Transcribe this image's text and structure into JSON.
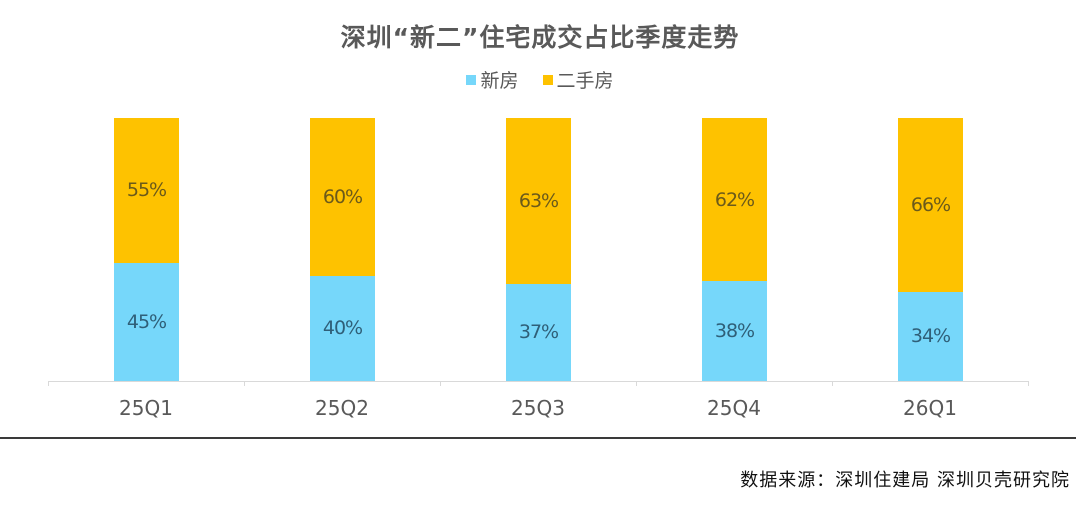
{
  "title": "深圳“新二”住宅成交占比季度走势",
  "legend": [
    {
      "label": "新房",
      "color": "#76D7FA"
    },
    {
      "label": "二手房",
      "color": "#FEC200"
    }
  ],
  "source": "数据来源：深圳住建局  深圳贝壳研究院",
  "chart_data": {
    "type": "bar",
    "stacked": true,
    "title": "深圳“新二”住宅成交占比季度走势",
    "xlabel": "",
    "ylabel": "",
    "ylim": [
      0,
      100
    ],
    "unit": "%",
    "grid": false,
    "legend_position": "top",
    "categories": [
      "25Q1",
      "25Q2",
      "25Q3",
      "25Q4",
      "26Q1"
    ],
    "series": [
      {
        "name": "新房",
        "color": "#76D7FA",
        "values": [
          45,
          40,
          37,
          38,
          34
        ],
        "labels": [
          "45%",
          "40%",
          "37%",
          "38%",
          "34%"
        ]
      },
      {
        "name": "二手房",
        "color": "#FEC200",
        "values": [
          55,
          60,
          63,
          62,
          66
        ],
        "labels": [
          "55%",
          "60%",
          "63%",
          "62%",
          "66%"
        ]
      }
    ]
  }
}
